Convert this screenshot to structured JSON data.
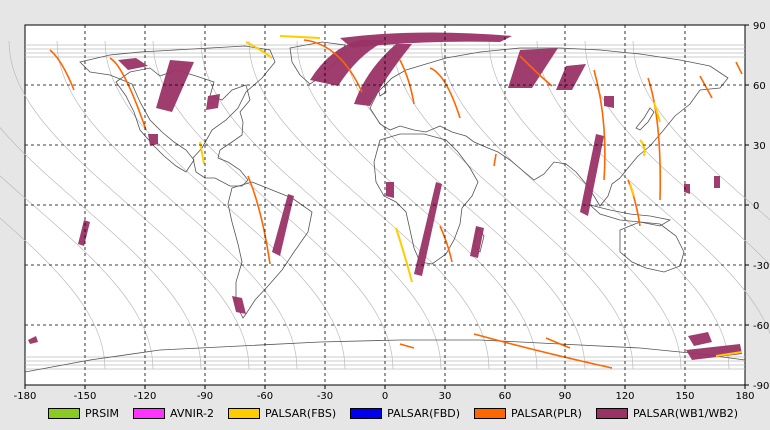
{
  "map": {
    "x_ticks": [
      "-180",
      "-150",
      "-120",
      "-90",
      "-60",
      "-30",
      "0",
      "30",
      "60",
      "90",
      "120",
      "150",
      "180"
    ],
    "y_ticks": [
      "90",
      "60",
      "30",
      "0",
      "-30",
      "-60",
      "-90"
    ],
    "lon_range": [
      -180,
      180
    ],
    "lat_range": [
      -90,
      90
    ],
    "grid": "dashed"
  },
  "legend": [
    {
      "label": "PRSIM",
      "color": "#88cc22"
    },
    {
      "label": "AVNIR-2",
      "color": "#ff33ff"
    },
    {
      "label": "PALSAR(FBS)",
      "color": "#ffcc00"
    },
    {
      "label": "PALSAR(FBD)",
      "color": "#0000ee"
    },
    {
      "label": "PALSAR(PLR)",
      "color": "#ff6600"
    },
    {
      "label": "PALSAR(WB1/WB2)",
      "color": "#993366"
    }
  ],
  "colors": {
    "plot_bg": "#ffffff",
    "land": "#555555",
    "orbit": "#bbbbbb",
    "wb": "#993366",
    "plr": "#ff6600",
    "fbs": "#ffcc00"
  }
}
